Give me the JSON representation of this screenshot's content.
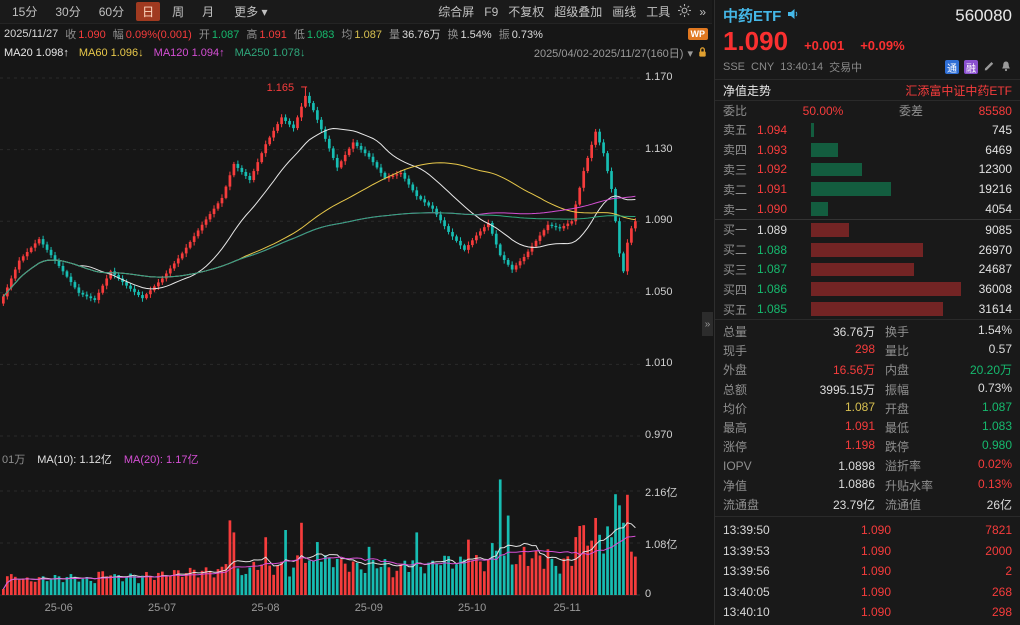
{
  "toolbar": {
    "periods": [
      "15分",
      "30分",
      "60分",
      "日",
      "周",
      "月"
    ],
    "active_period": "日",
    "more_label": "更多",
    "tools": [
      "综合屏",
      "F9",
      "不复权",
      "超级叠加",
      "画线",
      "工具"
    ]
  },
  "info_row": {
    "date": "2025/11/27",
    "fields": [
      {
        "label": "收",
        "value": "1.090",
        "c": "up"
      },
      {
        "label": "幅",
        "value": "0.09%(0.001)",
        "c": "up"
      },
      {
        "label": "开",
        "value": "1.087",
        "c": "down"
      },
      {
        "label": "高",
        "value": "1.091",
        "c": "up"
      },
      {
        "label": "低",
        "value": "1.083",
        "c": "down"
      },
      {
        "label": "均",
        "value": "1.087",
        "c": "avg"
      },
      {
        "label": "量",
        "value": "36.76万",
        "c": "neu"
      },
      {
        "label": "换",
        "value": "1.54%",
        "c": "neu"
      },
      {
        "label": "振",
        "value": "0.73%",
        "c": "neu"
      }
    ],
    "badge": "WP"
  },
  "ma_row": {
    "items": [
      {
        "label": "MA20",
        "value": "1.098",
        "dir": "↑",
        "color": "#e8e8e8"
      },
      {
        "label": "MA60",
        "value": "1.096",
        "dir": "↓",
        "color": "#e8c84a"
      },
      {
        "label": "MA120",
        "value": "1.094",
        "dir": "↑",
        "color": "#d44fd4"
      },
      {
        "label": "MA250",
        "value": "1.078",
        "dir": "↓",
        "color": "#2fa87c"
      }
    ],
    "range": "2025/04/02-2025/11/27(160日)",
    "range_arrow": "▾"
  },
  "volume_legend": {
    "prefix": "01万",
    "ma10_label": "MA(10):",
    "ma10": "1.12亿",
    "ma20_label": "MA(20):",
    "ma20": "1.17亿"
  },
  "chart_data": {
    "type": "candlestick",
    "title": "中药ETF 560080 日K",
    "date_range": "2025/04/02-2025/11/27",
    "bars": 160,
    "y_axis": [
      1.17,
      1.13,
      1.09,
      1.05,
      1.01,
      0.97
    ],
    "volume_axis": [
      2.16,
      1.08,
      0
    ],
    "volume_axis_labels": [
      "2.16亿",
      "1.08亿",
      "0"
    ],
    "x_labels": [
      {
        "label": "25-06",
        "index": 14
      },
      {
        "label": "25-07",
        "index": 40
      },
      {
        "label": "25-08",
        "index": 66
      },
      {
        "label": "25-09",
        "index": 92
      },
      {
        "label": "25-10",
        "index": 118
      },
      {
        "label": "25-11",
        "index": 142
      }
    ],
    "price_keypoints": [
      [
        0,
        1.048
      ],
      [
        4,
        1.068
      ],
      [
        9,
        1.08
      ],
      [
        14,
        1.065
      ],
      [
        19,
        1.05
      ],
      [
        23,
        1.046
      ],
      [
        27,
        1.062
      ],
      [
        31,
        1.054
      ],
      [
        35,
        1.047
      ],
      [
        40,
        1.058
      ],
      [
        45,
        1.072
      ],
      [
        50,
        1.088
      ],
      [
        55,
        1.103
      ],
      [
        58,
        1.122
      ],
      [
        62,
        1.113
      ],
      [
        66,
        1.133
      ],
      [
        70,
        1.148
      ],
      [
        73,
        1.142
      ],
      [
        76,
        1.16
      ],
      [
        78,
        1.152
      ],
      [
        81,
        1.136
      ],
      [
        84,
        1.12
      ],
      [
        88,
        1.134
      ],
      [
        92,
        1.126
      ],
      [
        96,
        1.114
      ],
      [
        100,
        1.117
      ],
      [
        104,
        1.104
      ],
      [
        108,
        1.097
      ],
      [
        112,
        1.084
      ],
      [
        116,
        1.074
      ],
      [
        119,
        1.082
      ],
      [
        122,
        1.089
      ],
      [
        125,
        1.071
      ],
      [
        128,
        1.063
      ],
      [
        131,
        1.07
      ],
      [
        134,
        1.079
      ],
      [
        137,
        1.088
      ],
      [
        140,
        1.086
      ],
      [
        143,
        1.09
      ],
      [
        146,
        1.118
      ],
      [
        149,
        1.14
      ],
      [
        151,
        1.128
      ],
      [
        153,
        1.108
      ],
      [
        155,
        1.072
      ],
      [
        156,
        1.062
      ],
      [
        157,
        1.078
      ],
      [
        158,
        1.086
      ],
      [
        159,
        1.09
      ]
    ],
    "high_peak": {
      "index": 76,
      "value": 1.165,
      "label": "1.165"
    },
    "volume_spikes": {
      "57": 1.55,
      "58": 1.3,
      "66": 1.2,
      "71": 1.35,
      "75": 1.5,
      "79": 1.1,
      "92": 1.0,
      "104": 1.3,
      "117": 1.15,
      "125": 2.4,
      "127": 1.65,
      "131": 1.0,
      "137": 0.95,
      "146": 1.45,
      "149": 1.6,
      "150": 1.25,
      "153": 1.2,
      "158": 0.9
    },
    "ma": [
      {
        "name": "MA20",
        "period": 20,
        "color": "#e8e8e8"
      },
      {
        "name": "MA60",
        "period": 60,
        "color": "#e8c84a"
      },
      {
        "name": "MA120",
        "period": 120,
        "color": "#d44fd4"
      },
      {
        "name": "MA250",
        "period": 250,
        "color": "#2fa87c"
      }
    ],
    "vol_ma": [
      {
        "period": 10,
        "color": "#e0e0e0"
      },
      {
        "period": 20,
        "color": "#d44fd4"
      }
    ]
  },
  "quote_panel": {
    "name": "中药ETF",
    "code": "560080",
    "last": "1.090",
    "change": "+0.001",
    "change_pct": "+0.09%",
    "exchange": "SSE",
    "currency": "CNY",
    "time": "13:40:14",
    "status": "交易中",
    "badges": {
      "tong": "通",
      "rong": "融"
    },
    "nav_label": "净值走势",
    "fund_name": "汇添富中证中药ETF",
    "weibi_label": "委比",
    "weibi": "50.00%",
    "weicha_label": "委差",
    "weicha": "85580",
    "asks": [
      {
        "label": "卖五",
        "price": "1.094",
        "qty": "745",
        "qty_num": 745
      },
      {
        "label": "卖四",
        "price": "1.093",
        "qty": "6469",
        "qty_num": 6469
      },
      {
        "label": "卖三",
        "price": "1.092",
        "qty": "12300",
        "qty_num": 12300
      },
      {
        "label": "卖二",
        "price": "1.091",
        "qty": "19216",
        "qty_num": 19216
      },
      {
        "label": "卖一",
        "price": "1.090",
        "qty": "4054",
        "qty_num": 4054
      }
    ],
    "bids": [
      {
        "label": "买一",
        "price": "1.089",
        "qty": "9085",
        "qty_num": 9085
      },
      {
        "label": "买二",
        "price": "1.088",
        "qty": "26970",
        "qty_num": 26970
      },
      {
        "label": "买三",
        "price": "1.087",
        "qty": "24687",
        "qty_num": 24687
      },
      {
        "label": "买四",
        "price": "1.086",
        "qty": "36008",
        "qty_num": 36008
      },
      {
        "label": "买五",
        "price": "1.085",
        "qty": "31614",
        "qty_num": 31614
      }
    ],
    "stats_rows": [
      [
        {
          "l": "总量",
          "v": "36.76万",
          "c": "neu"
        },
        {
          "l": "换手",
          "v": "1.54%",
          "c": "neu"
        }
      ],
      [
        {
          "l": "现手",
          "v": "298",
          "c": "up"
        },
        {
          "l": "量比",
          "v": "0.57",
          "c": "neu"
        }
      ],
      [
        {
          "l": "外盘",
          "v": "16.56万",
          "c": "up"
        },
        {
          "l": "内盘",
          "v": "20.20万",
          "c": "down"
        }
      ],
      [
        {
          "l": "总额",
          "v": "3995.15万",
          "c": "neu"
        },
        {
          "l": "振幅",
          "v": "0.73%",
          "c": "neu"
        }
      ],
      [
        {
          "l": "均价",
          "v": "1.087",
          "c": "avg"
        },
        {
          "l": "开盘",
          "v": "1.087",
          "c": "down"
        }
      ],
      [
        {
          "l": "最高",
          "v": "1.091",
          "c": "up"
        },
        {
          "l": "最低",
          "v": "1.083",
          "c": "down"
        }
      ],
      [
        {
          "l": "涨停",
          "v": "1.198",
          "c": "up"
        },
        {
          "l": "跌停",
          "v": "0.980",
          "c": "down"
        }
      ],
      [
        {
          "l": "IOPV",
          "v": "1.0898",
          "c": "neu"
        },
        {
          "l": "溢折率",
          "v": "0.02%",
          "c": "up"
        }
      ],
      [
        {
          "l": "净值",
          "v": "1.0886",
          "c": "neu"
        },
        {
          "l": "升贴水率",
          "v": "0.13%",
          "c": "up"
        }
      ],
      [
        {
          "l": "流通盘",
          "v": "23.79亿",
          "c": "neu"
        },
        {
          "l": "流通值",
          "v": "26亿",
          "c": "neu"
        }
      ]
    ],
    "ticks": [
      {
        "time": "13:39:50",
        "price": "1.090",
        "vol": "7821"
      },
      {
        "time": "13:39:53",
        "price": "1.090",
        "vol": "2000"
      },
      {
        "time": "13:39:56",
        "price": "1.090",
        "vol": "2"
      },
      {
        "time": "13:40:05",
        "price": "1.090",
        "vol": "268"
      },
      {
        "time": "13:40:10",
        "price": "1.090",
        "vol": "298"
      }
    ]
  }
}
